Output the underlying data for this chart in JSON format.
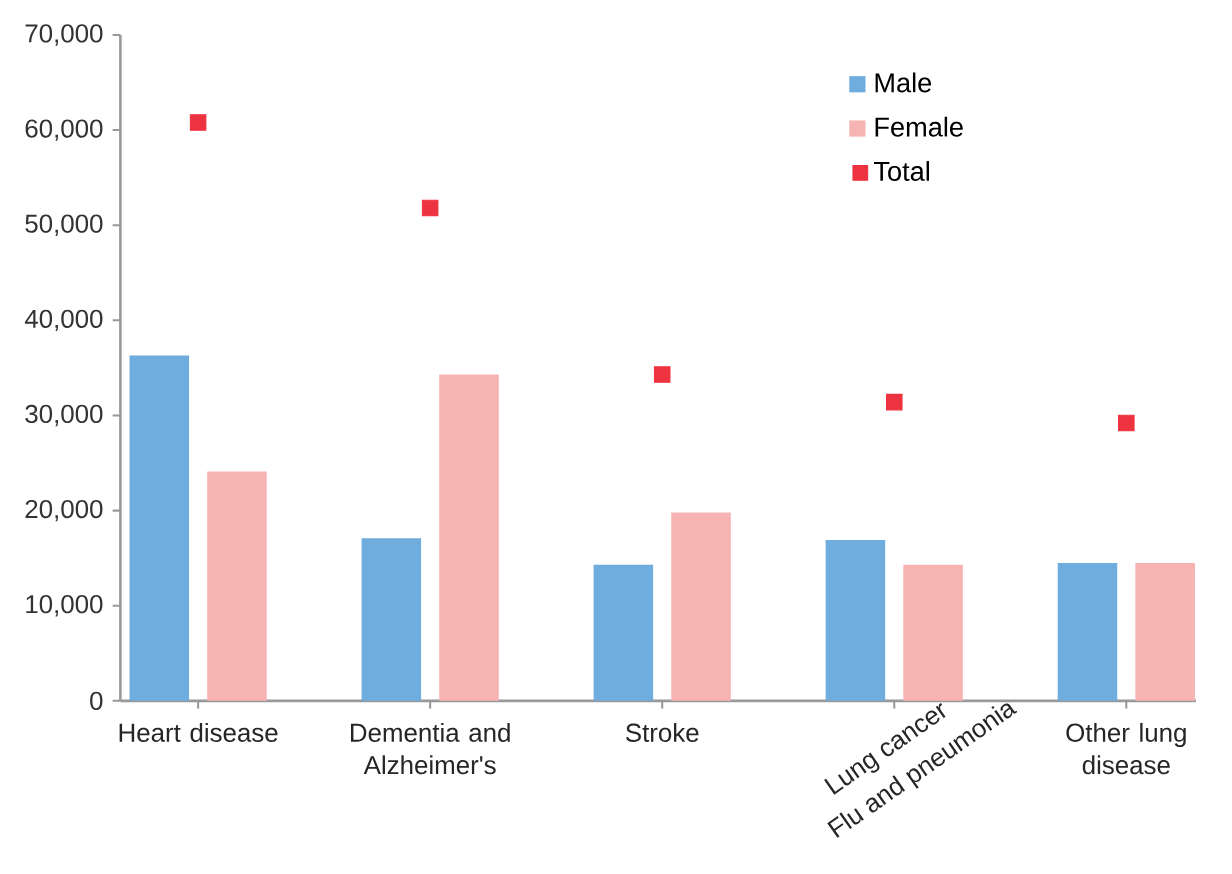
{
  "chart_data": {
    "type": "bar",
    "categories": [
      "Heart disease",
      "Dementia and Alzheimer's",
      "Stroke",
      "Lung cancer",
      "Other lung disease"
    ],
    "series": [
      {
        "name": "Male",
        "color": "#6fadde",
        "values": [
          36300,
          17100,
          14300,
          16900,
          14500
        ]
      },
      {
        "name": "Female",
        "color": "#f7b2b2",
        "values": [
          24100,
          34300,
          19800,
          14300,
          14500
        ]
      },
      {
        "name": "Total",
        "type": "scatter",
        "marker": "square",
        "color": "#ee3340",
        "values": [
          60800,
          51800,
          34300,
          31400,
          29200
        ]
      }
    ],
    "ylim": [
      0,
      70000
    ],
    "yticks": [
      {
        "value": 0,
        "label": "0"
      },
      {
        "value": 10000,
        "label": "10,000"
      },
      {
        "value": 20000,
        "label": "20,000"
      },
      {
        "value": 30000,
        "label": "30,000"
      },
      {
        "value": 40000,
        "label": "40,000"
      },
      {
        "value": 50000,
        "label": "50,000"
      },
      {
        "value": 60000,
        "label": "60,000"
      },
      {
        "value": 70000,
        "label": "70,000"
      }
    ],
    "legend": "top right",
    "grid": false,
    "annotations": [
      "Flu and pneumonia"
    ]
  }
}
